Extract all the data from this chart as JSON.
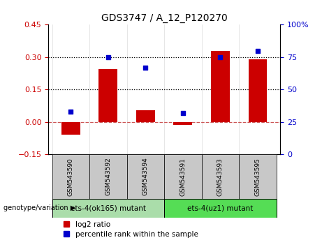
{
  "title": "GDS3747 / A_12_P120270",
  "samples": [
    "GSM543590",
    "GSM543592",
    "GSM543594",
    "GSM543591",
    "GSM543593",
    "GSM543595"
  ],
  "log2_ratio": [
    -0.06,
    0.245,
    0.055,
    -0.015,
    0.33,
    0.29
  ],
  "percentile_rank": [
    33,
    75,
    67,
    32,
    75,
    80
  ],
  "bar_color": "#cc0000",
  "dot_color": "#0000cc",
  "ylim_left": [
    -0.15,
    0.45
  ],
  "ylim_right": [
    0,
    100
  ],
  "yticks_left": [
    -0.15,
    0.0,
    0.15,
    0.3,
    0.45
  ],
  "yticks_right": [
    0,
    25,
    50,
    75,
    100
  ],
  "group1_label": "ets-4(ok165) mutant",
  "group2_label": "ets-4(uz1) mutant",
  "group1_color": "#aaddaa",
  "group2_color": "#55dd55",
  "group1_indices": [
    0,
    1,
    2
  ],
  "group2_indices": [
    3,
    4,
    5
  ],
  "genotype_label": "genotype/variation",
  "legend_bar_label": "log2 ratio",
  "legend_dot_label": "percentile rank within the sample",
  "ylabel_left_color": "#cc0000",
  "ylabel_right_color": "#0000cc",
  "title_fontsize": 10,
  "tick_fontsize": 8,
  "bar_width": 0.5,
  "label_area_color": "#c8c8c8",
  "zero_line_color": "#cc5555",
  "hline_color": "#000000"
}
